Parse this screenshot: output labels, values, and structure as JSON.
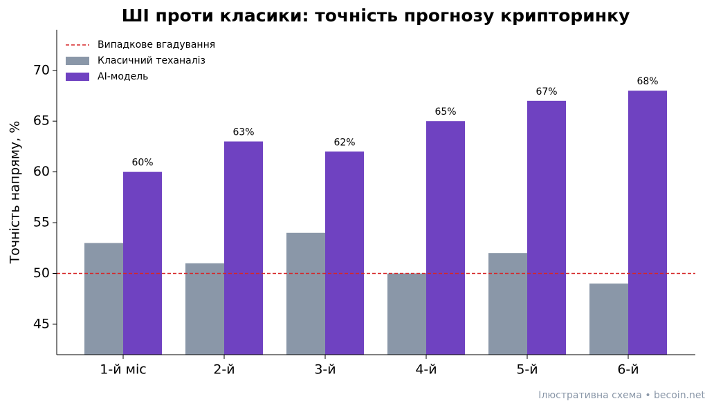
{
  "chart_data": {
    "type": "bar",
    "title": "ШІ проти класики: точність прогнозу крипторинку",
    "y_label": "Точність напряму, %",
    "footnote": "Ілюстративна схема • becoin.net",
    "categories": [
      "1-й міс",
      "2-й",
      "3-й",
      "4-й",
      "5-й",
      "6-й"
    ],
    "series": [
      {
        "name": "Класичний теханаліз",
        "color": "#8a97a8",
        "values": [
          53,
          51,
          54,
          50,
          52,
          49
        ]
      },
      {
        "name": "AI-модель",
        "color": "#6f42c1",
        "values": [
          60,
          63,
          62,
          65,
          67,
          68
        ],
        "value_labels": [
          "60%",
          "63%",
          "62%",
          "65%",
          "67%",
          "68%"
        ]
      }
    ],
    "reference_line": {
      "name": "Випадкове вгадування",
      "value": 50,
      "color": "#d62728"
    },
    "ylim": [
      42,
      74
    ],
    "yticks": [
      45,
      50,
      55,
      60,
      65,
      70
    ],
    "legend": "upper-left"
  }
}
